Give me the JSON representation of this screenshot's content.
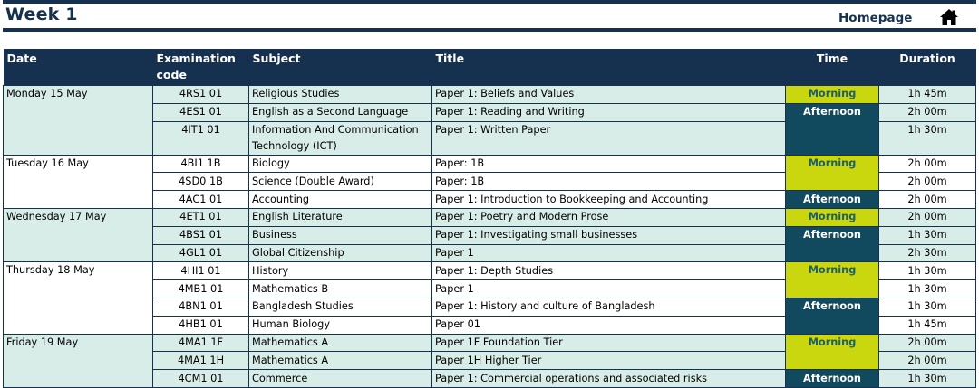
{
  "header": {
    "title": "Week 1",
    "home_label": "Homepage",
    "home_icon": "house-icon"
  },
  "colors": {
    "navy": "#16304f",
    "morning": "#cad70f",
    "afternoon": "#114a5e",
    "stripe": "#d8ede8"
  },
  "table": {
    "columns": [
      "Date",
      "Examination code",
      "Subject",
      "Title",
      "Time",
      "Duration"
    ],
    "rows": [
      {
        "date": "Monday 15 May",
        "code": "4RS1 01",
        "subject": "Religious Studies",
        "title": "Paper 1: Beliefs and Values",
        "time": "Morning",
        "duration": "1h 45m"
      },
      {
        "date": "",
        "code": "4ES1 01",
        "subject": "English as a Second Language",
        "title": "Paper 1: Reading and Writing",
        "time": "Afternoon",
        "duration": "2h 00m"
      },
      {
        "date": "",
        "code": "4IT1 01",
        "subject": "Information And Communication Technology (ICT)",
        "title": "Paper 1: Written Paper",
        "time": "",
        "duration": "1h 30m"
      },
      {
        "date": "Tuesday 16 May",
        "code": "4BI1 1B",
        "subject": "Biology",
        "title": "Paper: 1B",
        "time": "Morning",
        "duration": "2h 00m"
      },
      {
        "date": "",
        "code": "4SD0 1B",
        "subject": "Science (Double Award)",
        "title": "Paper: 1B",
        "time": "",
        "duration": "2h 00m"
      },
      {
        "date": "",
        "code": "4AC1 01",
        "subject": "Accounting",
        "title": "Paper 1: Introduction to Bookkeeping and Accounting",
        "time": "Afternoon",
        "duration": "2h 00m"
      },
      {
        "date": "Wednesday 17 May",
        "code": "4ET1 01",
        "subject": "English Literature",
        "title": "Paper 1: Poetry and Modern Prose",
        "time": "Morning",
        "duration": "2h 00m"
      },
      {
        "date": "",
        "code": "4BS1 01",
        "subject": "Business",
        "title": "Paper 1: Investigating small businesses",
        "time": "Afternoon",
        "duration": "1h 30m"
      },
      {
        "date": "",
        "code": "4GL1 01",
        "subject": "Global Citizenship",
        "title": "Paper 1",
        "time": "",
        "duration": "2h 30m"
      },
      {
        "date": "Thursday 18 May",
        "code": "4HI1 01",
        "subject": "History",
        "title": "Paper 1: Depth Studies",
        "time": "Morning",
        "duration": "1h 30m"
      },
      {
        "date": "",
        "code": "4MB1 01",
        "subject": "Mathematics B",
        "title": "Paper 1",
        "time": "",
        "duration": "1h 30m"
      },
      {
        "date": "",
        "code": "4BN1 01",
        "subject": "Bangladesh Studies",
        "title": "Paper 1: History and culture of Bangladesh",
        "time": "Afternoon",
        "duration": "1h 30m"
      },
      {
        "date": "",
        "code": "4HB1 01",
        "subject": "Human Biology",
        "title": "Paper 01",
        "time": "",
        "duration": "1h 45m"
      },
      {
        "date": "Friday 19 May",
        "code": "4MA1 1F",
        "subject": "Mathematics A",
        "title": "Paper 1F Foundation Tier",
        "time": "Morning",
        "duration": "2h 00m"
      },
      {
        "date": "",
        "code": "4MA1 1H",
        "subject": "Mathematics A",
        "title": "Paper 1H Higher Tier",
        "time": "",
        "duration": "2h 00m"
      },
      {
        "date": "",
        "code": "4CM1 01",
        "subject": "Commerce",
        "title": "Paper 1: Commercial operations and associated risks",
        "time": "Afternoon",
        "duration": "1h 30m"
      }
    ]
  }
}
